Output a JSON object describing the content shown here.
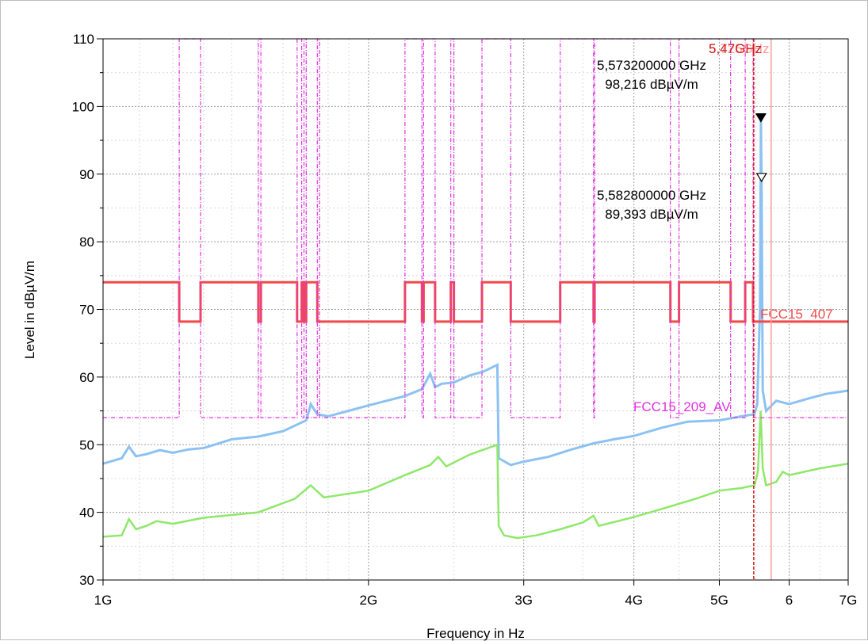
{
  "chart_data": {
    "type": "line",
    "xlabel": "Frequency in Hz",
    "ylabel": "Level in dBµV/m",
    "x_scale": "log",
    "x_unit": "GHz",
    "xlim": [
      1,
      7
    ],
    "ylim": [
      30,
      110
    ],
    "x_ticks": [
      {
        "value": 1,
        "label": "1G"
      },
      {
        "value": 2,
        "label": "2G"
      },
      {
        "value": 3,
        "label": "3G"
      },
      {
        "value": 4,
        "label": "4G"
      },
      {
        "value": 5,
        "label": "5G"
      },
      {
        "value": 6,
        "label": "6"
      },
      {
        "value": 7,
        "label": "7G"
      }
    ],
    "y_ticks": [
      30,
      40,
      50,
      60,
      70,
      80,
      90,
      100,
      110
    ],
    "grid": true,
    "colors": {
      "peak": "#8cc2f2",
      "average": "#8ee86a",
      "fcc15_407": "#f04a4a",
      "fcc15_209": "#e030e0",
      "vline": "#d11a1a",
      "vline_light": "#ff9a9a"
    },
    "series": [
      {
        "role": "peak",
        "color": "#8cc2f2",
        "points": [
          [
            1.0,
            47.2
          ],
          [
            1.05,
            48.0
          ],
          [
            1.07,
            49.7
          ],
          [
            1.09,
            48.3
          ],
          [
            1.12,
            48.6
          ],
          [
            1.16,
            49.2
          ],
          [
            1.2,
            48.8
          ],
          [
            1.25,
            49.3
          ],
          [
            1.3,
            49.5
          ],
          [
            1.4,
            50.8
          ],
          [
            1.5,
            51.2
          ],
          [
            1.6,
            52.0
          ],
          [
            1.7,
            53.6
          ],
          [
            1.72,
            56.0
          ],
          [
            1.75,
            54.5
          ],
          [
            1.8,
            54.2
          ],
          [
            2.0,
            55.8
          ],
          [
            2.2,
            57.2
          ],
          [
            2.3,
            58.2
          ],
          [
            2.35,
            60.5
          ],
          [
            2.38,
            58.5
          ],
          [
            2.42,
            59.0
          ],
          [
            2.5,
            59.2
          ],
          [
            2.6,
            60.2
          ],
          [
            2.7,
            60.8
          ],
          [
            2.8,
            61.8
          ],
          [
            2.81,
            48.0
          ],
          [
            2.9,
            47.0
          ],
          [
            3.0,
            47.5
          ],
          [
            3.2,
            48.2
          ],
          [
            3.4,
            49.3
          ],
          [
            3.6,
            50.2
          ],
          [
            3.8,
            50.8
          ],
          [
            4.0,
            51.3
          ],
          [
            4.3,
            52.5
          ],
          [
            4.6,
            53.4
          ],
          [
            5.0,
            53.6
          ],
          [
            5.3,
            54.2
          ],
          [
            5.48,
            54.5
          ],
          [
            5.52,
            56.0
          ],
          [
            5.56,
            70.0
          ],
          [
            5.573,
            98.2
          ],
          [
            5.583,
            89.4
          ],
          [
            5.6,
            58.0
          ],
          [
            5.65,
            55.0
          ],
          [
            5.8,
            56.5
          ],
          [
            6.0,
            56.0
          ],
          [
            6.3,
            56.8
          ],
          [
            6.6,
            57.5
          ],
          [
            7.0,
            58.0
          ]
        ]
      },
      {
        "role": "average",
        "color": "#8ee86a",
        "points": [
          [
            1.0,
            36.4
          ],
          [
            1.05,
            36.6
          ],
          [
            1.07,
            39.0
          ],
          [
            1.09,
            37.5
          ],
          [
            1.12,
            38.0
          ],
          [
            1.15,
            38.7
          ],
          [
            1.2,
            38.3
          ],
          [
            1.3,
            39.2
          ],
          [
            1.5,
            40.0
          ],
          [
            1.65,
            42.0
          ],
          [
            1.72,
            44.0
          ],
          [
            1.78,
            42.2
          ],
          [
            2.0,
            43.2
          ],
          [
            2.2,
            45.5
          ],
          [
            2.35,
            47.0
          ],
          [
            2.4,
            48.2
          ],
          [
            2.45,
            46.8
          ],
          [
            2.6,
            48.5
          ],
          [
            2.8,
            50.0
          ],
          [
            2.81,
            38.0
          ],
          [
            2.85,
            36.6
          ],
          [
            2.95,
            36.2
          ],
          [
            3.1,
            36.6
          ],
          [
            3.3,
            37.5
          ],
          [
            3.5,
            38.5
          ],
          [
            3.6,
            39.5
          ],
          [
            3.65,
            38.0
          ],
          [
            4.0,
            39.3
          ],
          [
            4.3,
            40.5
          ],
          [
            4.7,
            42.0
          ],
          [
            5.0,
            43.2
          ],
          [
            5.3,
            43.6
          ],
          [
            5.48,
            44.0
          ],
          [
            5.53,
            46.0
          ],
          [
            5.57,
            55.0
          ],
          [
            5.6,
            46.5
          ],
          [
            5.65,
            44.0
          ],
          [
            5.8,
            44.5
          ],
          [
            5.9,
            46.0
          ],
          [
            6.0,
            45.5
          ],
          [
            6.5,
            46.5
          ],
          [
            7.0,
            47.2
          ]
        ]
      },
      {
        "role": "limit-line",
        "name": "FCC15_407",
        "color": "#f04a4a",
        "points": [
          [
            1.0,
            74
          ],
          [
            1.22,
            74
          ],
          [
            1.22,
            68.2
          ],
          [
            1.29,
            68.2
          ],
          [
            1.29,
            74
          ],
          [
            1.5,
            74
          ],
          [
            1.5,
            68.2
          ],
          [
            1.51,
            68.2
          ],
          [
            1.51,
            74
          ],
          [
            1.66,
            74
          ],
          [
            1.66,
            68.2
          ],
          [
            1.68,
            68.2
          ],
          [
            1.68,
            74
          ],
          [
            1.69,
            74
          ],
          [
            1.69,
            68.2
          ],
          [
            1.7,
            68.2
          ],
          [
            1.7,
            74
          ],
          [
            1.75,
            74
          ],
          [
            1.75,
            68.2
          ],
          [
            1.76,
            68.2
          ],
          [
            1.76,
            68.2
          ],
          [
            2.2,
            68.2
          ],
          [
            2.2,
            74
          ],
          [
            2.3,
            74
          ],
          [
            2.3,
            68.2
          ],
          [
            2.31,
            68.2
          ],
          [
            2.31,
            74
          ],
          [
            2.38,
            74
          ],
          [
            2.38,
            68.2
          ],
          [
            2.48,
            68.2
          ],
          [
            2.48,
            74
          ],
          [
            2.5,
            74
          ],
          [
            2.5,
            68.2
          ],
          [
            2.69,
            68.2
          ],
          [
            2.69,
            74
          ],
          [
            2.9,
            74
          ],
          [
            2.9,
            68.2
          ],
          [
            3.3,
            68.2
          ],
          [
            3.3,
            74
          ],
          [
            3.6,
            74
          ],
          [
            3.6,
            68.2
          ],
          [
            3.61,
            68.2
          ],
          [
            3.61,
            74
          ],
          [
            4.4,
            74
          ],
          [
            4.4,
            68.2
          ],
          [
            4.5,
            68.2
          ],
          [
            4.5,
            74
          ],
          [
            5.15,
            74
          ],
          [
            5.15,
            68.2
          ],
          [
            5.35,
            68.2
          ],
          [
            5.35,
            74
          ],
          [
            5.46,
            74
          ],
          [
            5.46,
            68.2
          ],
          [
            7.0,
            68.2
          ]
        ]
      },
      {
        "role": "limit-line",
        "name": "FCC15_209_AV",
        "color": "#e030e0",
        "points": [
          [
            1.0,
            54
          ],
          [
            1.22,
            54
          ],
          [
            1.22,
            110
          ],
          [
            1.29,
            110
          ],
          [
            1.29,
            54
          ],
          [
            1.5,
            54
          ],
          [
            1.5,
            110
          ],
          [
            1.51,
            110
          ],
          [
            1.51,
            54
          ],
          [
            1.66,
            54
          ],
          [
            1.66,
            110
          ],
          [
            1.68,
            110
          ],
          [
            1.68,
            54
          ],
          [
            1.69,
            54
          ],
          [
            1.69,
            110
          ],
          [
            1.7,
            110
          ],
          [
            1.7,
            54
          ],
          [
            1.75,
            54
          ],
          [
            1.75,
            110
          ],
          [
            1.76,
            110
          ],
          [
            1.76,
            54
          ],
          [
            2.2,
            54
          ],
          [
            2.2,
            110
          ],
          [
            2.3,
            110
          ],
          [
            2.3,
            54
          ],
          [
            2.31,
            54
          ],
          [
            2.31,
            110
          ],
          [
            2.38,
            110
          ],
          [
            2.38,
            54
          ],
          [
            2.48,
            54
          ],
          [
            2.48,
            110
          ],
          [
            2.5,
            110
          ],
          [
            2.5,
            54
          ],
          [
            2.69,
            54
          ],
          [
            2.69,
            110
          ],
          [
            2.9,
            110
          ],
          [
            2.9,
            54
          ],
          [
            3.3,
            54
          ],
          [
            3.3,
            110
          ],
          [
            3.6,
            110
          ],
          [
            3.6,
            54
          ],
          [
            3.61,
            54
          ],
          [
            3.61,
            110
          ],
          [
            4.4,
            110
          ],
          [
            4.4,
            54
          ],
          [
            4.5,
            54
          ],
          [
            4.5,
            110
          ],
          [
            5.15,
            110
          ],
          [
            5.15,
            54
          ],
          [
            5.35,
            54
          ],
          [
            5.35,
            110
          ],
          [
            5.46,
            110
          ],
          [
            5.46,
            54
          ],
          [
            7.0,
            54
          ]
        ]
      }
    ],
    "verticals": [
      {
        "x": 5.47,
        "color": "#d11a1a",
        "dashed": true
      },
      {
        "x": 5.725,
        "color": "#ff9a9a",
        "dashed": false
      }
    ],
    "markers": [
      {
        "x": 5.5732,
        "y": 98.216,
        "style": "filled-down-triangle",
        "line1": "5,573200000 GHz",
        "line2": "98,216 dBµV/m"
      },
      {
        "x": 5.5828,
        "y": 89.393,
        "style": "open-down-triangle",
        "line1": "5,582800000 GHz",
        "line2": "89,393 dBµV/m"
      }
    ],
    "vline_labels": {
      "primary": "5,47GHz",
      "overlap": "5,725GHz"
    },
    "limit_labels": {
      "fcc15_407": "FCC15_407",
      "fcc15_209": "FCC15_209_AV"
    }
  }
}
